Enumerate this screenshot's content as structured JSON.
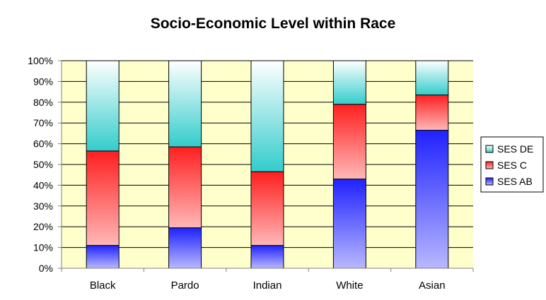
{
  "chart_data": {
    "type": "bar",
    "stacked": true,
    "percent_stacked": true,
    "title": "Socio-Economic  Level within Race",
    "xlabel": "",
    "ylabel": "",
    "categories": [
      "Black",
      "Pardo",
      "Indian",
      "White",
      "Asian"
    ],
    "series": [
      {
        "name": "SES AB",
        "values": [
          11,
          19.5,
          11,
          43,
          66.5
        ],
        "color_top": "#1f22ff",
        "color_bottom": "#b8b8ff"
      },
      {
        "name": "SES C",
        "values": [
          45.5,
          39,
          35.5,
          36,
          17
        ],
        "color_top": "#ff1f1f",
        "color_bottom": "#ffb8b8"
      },
      {
        "name": "SES DE",
        "values": [
          43.5,
          41.5,
          53.5,
          21,
          16.5
        ],
        "color_top": "#ffffff",
        "color_bottom": "#33cccc"
      }
    ],
    "legend_order": [
      "SES DE",
      "SES C",
      "SES AB"
    ],
    "ylim": [
      0,
      100
    ],
    "y_ticks": [
      "0%",
      "10%",
      "20%",
      "30%",
      "40%",
      "50%",
      "60%",
      "70%",
      "80%",
      "90%",
      "100%"
    ],
    "grid": true,
    "legend_position": "right",
    "plot_background": "#ffffcc"
  }
}
